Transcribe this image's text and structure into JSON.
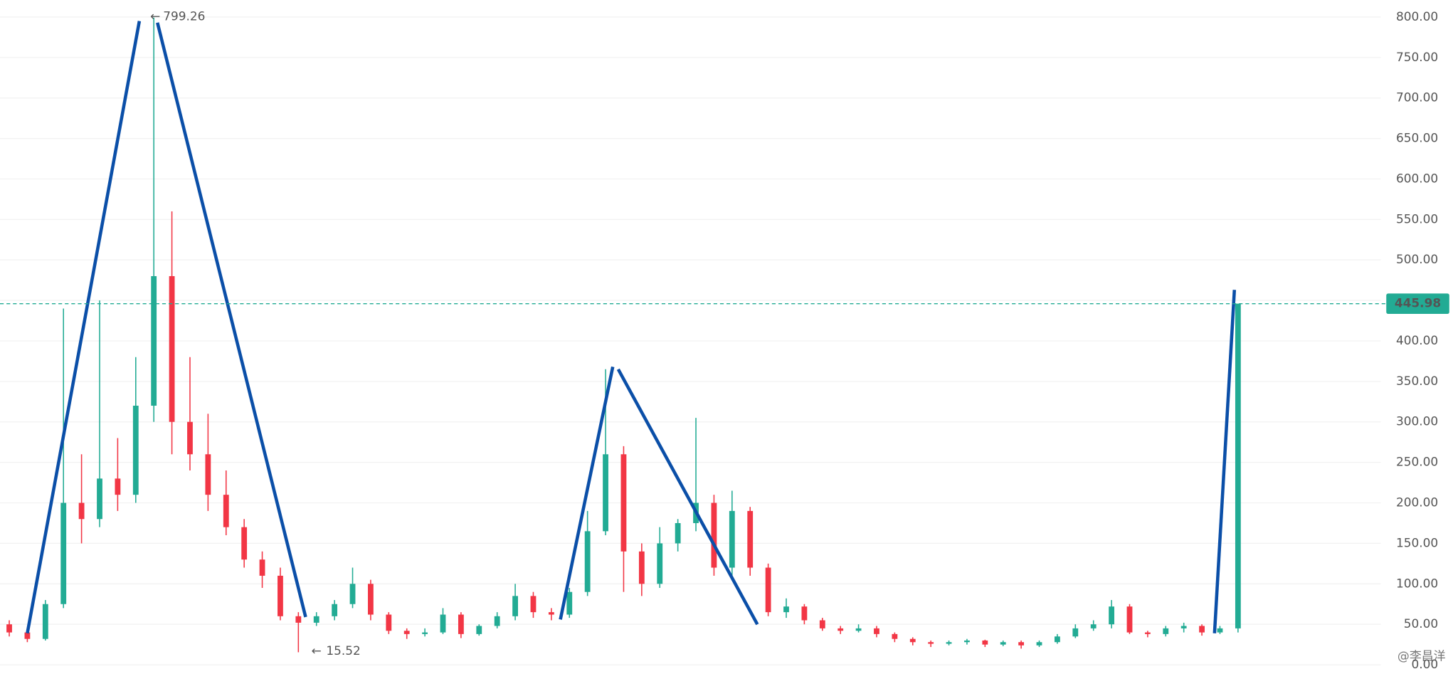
{
  "chart_data": {
    "type": "candlestick",
    "up_color": "#22ab94",
    "down_color": "#f23645",
    "trend_color": "#0b4fa8",
    "open": [
      50,
      40,
      32,
      75,
      200,
      180,
      230,
      210,
      320,
      480,
      300,
      260,
      210,
      170,
      130,
      110,
      60,
      52,
      60,
      75,
      100,
      62,
      42,
      38,
      40,
      62,
      38,
      48,
      60,
      85,
      65,
      62,
      90,
      165,
      260,
      140,
      100,
      150,
      175,
      200,
      120,
      190,
      120,
      65,
      72,
      55,
      45,
      42,
      45,
      38,
      32,
      28,
      26,
      28,
      30,
      25,
      28,
      24,
      28,
      35,
      45,
      50,
      72,
      40,
      38,
      45,
      48,
      40,
      45
    ],
    "high": [
      55,
      45,
      80,
      440,
      260,
      450,
      280,
      380,
      799.26,
      560,
      380,
      310,
      240,
      180,
      140,
      120,
      65,
      65,
      80,
      120,
      105,
      65,
      45,
      45,
      70,
      65,
      50,
      65,
      100,
      90,
      70,
      95,
      190,
      365,
      270,
      150,
      170,
      180,
      305,
      210,
      215,
      195,
      125,
      82,
      75,
      58,
      48,
      50,
      48,
      40,
      34,
      30,
      30,
      32,
      31,
      30,
      30,
      30,
      38,
      50,
      55,
      80,
      75,
      42,
      48,
      52,
      50,
      48,
      446
    ],
    "low": [
      35,
      28,
      30,
      70,
      150,
      170,
      190,
      200,
      300,
      260,
      240,
      190,
      160,
      120,
      95,
      55,
      15.52,
      48,
      55,
      70,
      55,
      38,
      32,
      35,
      38,
      33,
      36,
      45,
      55,
      58,
      55,
      58,
      85,
      160,
      90,
      85,
      95,
      140,
      165,
      110,
      110,
      110,
      60,
      58,
      50,
      42,
      38,
      40,
      34,
      28,
      24,
      22,
      24,
      25,
      22,
      23,
      20,
      22,
      26,
      33,
      42,
      45,
      38,
      34,
      35,
      40,
      36,
      38,
      40
    ],
    "close": [
      40,
      32,
      75,
      200,
      180,
      230,
      210,
      320,
      480,
      300,
      260,
      210,
      170,
      130,
      110,
      60,
      52,
      60,
      75,
      100,
      62,
      42,
      38,
      40,
      62,
      38,
      48,
      60,
      85,
      65,
      62,
      90,
      165,
      260,
      140,
      100,
      150,
      175,
      200,
      120,
      190,
      120,
      65,
      72,
      55,
      45,
      42,
      45,
      38,
      32,
      28,
      26,
      28,
      30,
      25,
      28,
      24,
      28,
      35,
      45,
      50,
      72,
      40,
      38,
      45,
      48,
      40,
      45,
      445.98
    ],
    "ylim": [
      -14,
      821
    ],
    "yticks": [
      {
        "value": 0,
        "label": "0.00"
      },
      {
        "value": 50,
        "label": "50.00"
      },
      {
        "value": 100,
        "label": "100.00"
      },
      {
        "value": 150,
        "label": "150.00"
      },
      {
        "value": 200,
        "label": "200.00"
      },
      {
        "value": 250,
        "label": "250.00"
      },
      {
        "value": 300,
        "label": "300.00"
      },
      {
        "value": 350,
        "label": "350.00"
      },
      {
        "value": 400,
        "label": "400.00"
      },
      {
        "value": 450,
        "label": "450.00"
      },
      {
        "value": 500,
        "label": "500.00"
      },
      {
        "value": 550,
        "label": "550.00"
      },
      {
        "value": 600,
        "label": "600.00"
      },
      {
        "value": 650,
        "label": "650.00"
      },
      {
        "value": 700,
        "label": "700.00"
      },
      {
        "value": 750,
        "label": "750.00"
      },
      {
        "value": 800,
        "label": "800.00"
      }
    ],
    "grid": true,
    "trend_lines": [
      {
        "x": [
          1,
          7.2
        ],
        "y": [
          39,
          795
        ]
      },
      {
        "x": [
          8.2,
          16.4
        ],
        "y": [
          793,
          59
        ]
      },
      {
        "x": [
          30.5,
          33.4
        ],
        "y": [
          56,
          368
        ]
      },
      {
        "x": [
          33.7,
          41.4
        ],
        "y": [
          365,
          50
        ]
      },
      {
        "x": [
          66.7,
          67.8
        ],
        "y": [
          39,
          463
        ]
      }
    ],
    "watermark": "@李昌洋"
  }
}
